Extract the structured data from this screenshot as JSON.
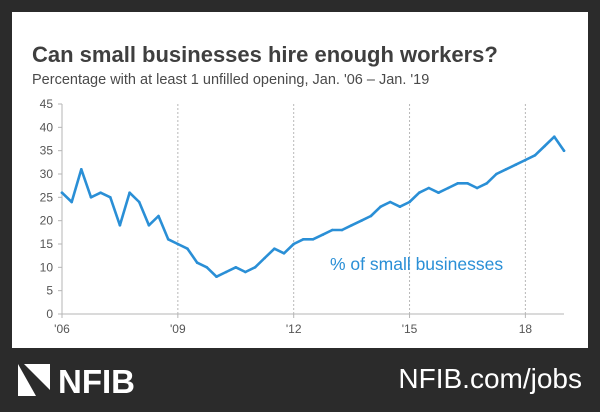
{
  "chart_data": {
    "type": "line",
    "title": "Can small businesses hire enough workers?",
    "subtitle": "Percentage with at least 1 unfilled opening, Jan. '06 – Jan. '19",
    "series_label": "% of small businesses",
    "x_start": "2006-01",
    "x_end": "2019-01",
    "x_tick_labels": [
      "'06",
      "'09",
      "'12",
      "'15",
      "18"
    ],
    "y_tick_labels": [
      "0",
      "5",
      "10",
      "15",
      "20",
      "25",
      "30",
      "35",
      "40",
      "45"
    ],
    "ylim": [
      0,
      45
    ],
    "grid": "vertical dashed at x ticks",
    "color": "#2a8fd6",
    "months": [
      "2006-01",
      "2006-04",
      "2006-07",
      "2006-10",
      "2007-01",
      "2007-04",
      "2007-07",
      "2007-10",
      "2008-01",
      "2008-04",
      "2008-07",
      "2008-10",
      "2009-01",
      "2009-04",
      "2009-07",
      "2009-10",
      "2010-01",
      "2010-04",
      "2010-07",
      "2010-10",
      "2011-01",
      "2011-04",
      "2011-07",
      "2011-10",
      "2012-01",
      "2012-04",
      "2012-07",
      "2012-10",
      "2013-01",
      "2013-04",
      "2013-07",
      "2013-10",
      "2014-01",
      "2014-04",
      "2014-07",
      "2014-10",
      "2015-01",
      "2015-04",
      "2015-07",
      "2015-10",
      "2016-01",
      "2016-04",
      "2016-07",
      "2016-10",
      "2017-01",
      "2017-04",
      "2017-07",
      "2017-10",
      "2018-01",
      "2018-04",
      "2018-07",
      "2018-10",
      "2019-01"
    ],
    "values": [
      26,
      24,
      31,
      25,
      26,
      25,
      19,
      26,
      24,
      19,
      21,
      16,
      15,
      14,
      11,
      10,
      8,
      9,
      10,
      9,
      10,
      12,
      14,
      13,
      15,
      16,
      16,
      17,
      18,
      18,
      19,
      20,
      21,
      23,
      24,
      23,
      24,
      26,
      27,
      26,
      27,
      28,
      28,
      27,
      28,
      30,
      31,
      32,
      33,
      34,
      36,
      38,
      35
    ]
  },
  "branding": {
    "logo_text": "NFIB",
    "url": "NFIB.com/jobs"
  }
}
